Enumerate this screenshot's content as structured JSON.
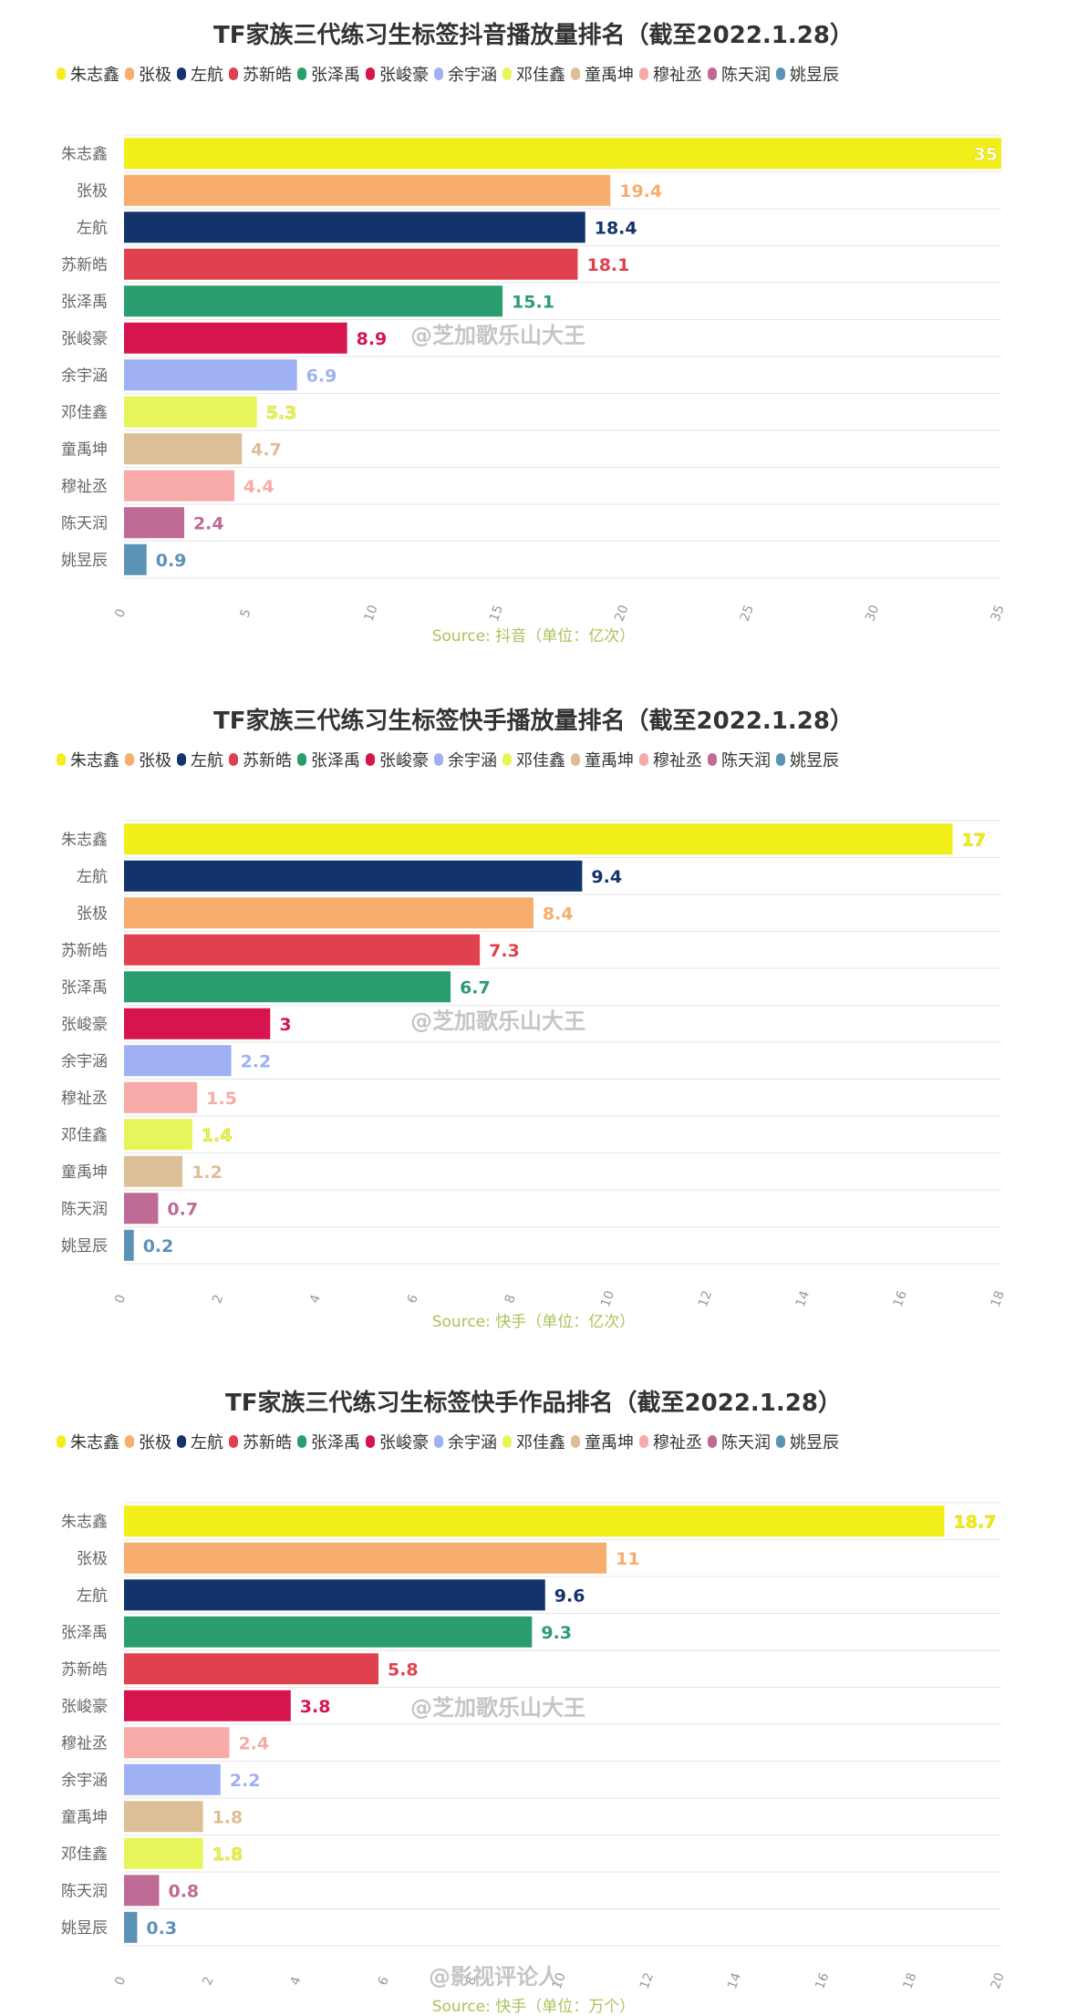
{
  "colors": {
    "朱志鑫": "#f2ee1a",
    "张极": "#f7ad6e",
    "左航": "#13336b",
    "苏新皓": "#e0414e",
    "张泽禹": "#2a9d6e",
    "张峻豪": "#d6154e",
    "余宇涵": "#9fb1f2",
    "邓佳鑫": "#e6f55a",
    "童禹坤": "#dcbf96",
    "穆祉丞": "#f7aaa8",
    "陈天润": "#c06a96",
    "姚昱辰": "#5b93b6"
  },
  "legend_order": [
    "朱志鑫",
    "张极",
    "左航",
    "苏新皓",
    "张泽禹",
    "张峻豪",
    "余宇涵",
    "邓佳鑫",
    "童禹坤",
    "穆祉丞",
    "陈天润",
    "姚昱辰"
  ],
  "watermark_text": "@芝加歌乐山大王",
  "bottom_watermark_text": "@影视评论人",
  "chart_data": [
    {
      "type": "bar",
      "orientation": "horizontal",
      "title": "TF家族三代练习生标签抖音播放量排名（截至2022.1.28）",
      "source": "Source: 抖音（单位：亿次）",
      "categories": [
        "朱志鑫",
        "张极",
        "左航",
        "苏新皓",
        "张泽禹",
        "张峻豪",
        "余宇涵",
        "邓佳鑫",
        "童禹坤",
        "穆祉丞",
        "陈天润",
        "姚昱辰"
      ],
      "values": [
        35,
        19.4,
        18.4,
        18.1,
        15.1,
        8.9,
        6.9,
        5.3,
        4.7,
        4.4,
        2.4,
        0.9
      ],
      "labels": [
        "35",
        "19.4",
        "18.4",
        "18.1",
        "15.1",
        "8.9",
        "6.9",
        "5.3",
        "4.7",
        "4.4",
        "2.4",
        "0.9"
      ],
      "xlim": [
        0,
        35
      ],
      "xticks": [
        0,
        5,
        10,
        15,
        20,
        25,
        30,
        35
      ],
      "grid": true,
      "legend": "top"
    },
    {
      "type": "bar",
      "orientation": "horizontal",
      "title": "TF家族三代练习生标签快手播放量排名（截至2022.1.28）",
      "source": "Source: 快手（单位：亿次）",
      "categories": [
        "朱志鑫",
        "左航",
        "张极",
        "苏新皓",
        "张泽禹",
        "张峻豪",
        "余宇涵",
        "穆祉丞",
        "邓佳鑫",
        "童禹坤",
        "陈天润",
        "姚昱辰"
      ],
      "values": [
        17,
        9.4,
        8.4,
        7.3,
        6.7,
        3,
        2.2,
        1.5,
        1.4,
        1.2,
        0.7,
        0.2
      ],
      "labels": [
        "17",
        "9.4",
        "8.4",
        "7.3",
        "6.7",
        "3",
        "2.2",
        "1.5",
        "1.4",
        "1.2",
        "0.7",
        "0.2"
      ],
      "xlim": [
        0,
        18
      ],
      "xticks": [
        0,
        2,
        4,
        6,
        8,
        10,
        12,
        14,
        16,
        18
      ],
      "grid": true,
      "legend": "top"
    },
    {
      "type": "bar",
      "orientation": "horizontal",
      "title": "TF家族三代练习生标签快手作品排名（截至2022.1.28）",
      "source": "Source: 快手（单位：万个）",
      "categories": [
        "朱志鑫",
        "张极",
        "左航",
        "张泽禹",
        "苏新皓",
        "张峻豪",
        "穆祉丞",
        "余宇涵",
        "童禹坤",
        "邓佳鑫",
        "陈天润",
        "姚昱辰"
      ],
      "values": [
        18.7,
        11,
        9.6,
        9.3,
        5.8,
        3.8,
        2.4,
        2.2,
        1.8,
        1.8,
        0.8,
        0.3
      ],
      "labels": [
        "18.7",
        "11",
        "9.6",
        "9.3",
        "5.8",
        "3.8",
        "2.4",
        "2.2",
        "1.8",
        "1.8",
        "0.8",
        "0.3"
      ],
      "xlim": [
        0,
        20
      ],
      "xticks": [
        0,
        2,
        4,
        6,
        8,
        10,
        12,
        14,
        16,
        18,
        20
      ],
      "grid": true,
      "legend": "top"
    }
  ]
}
